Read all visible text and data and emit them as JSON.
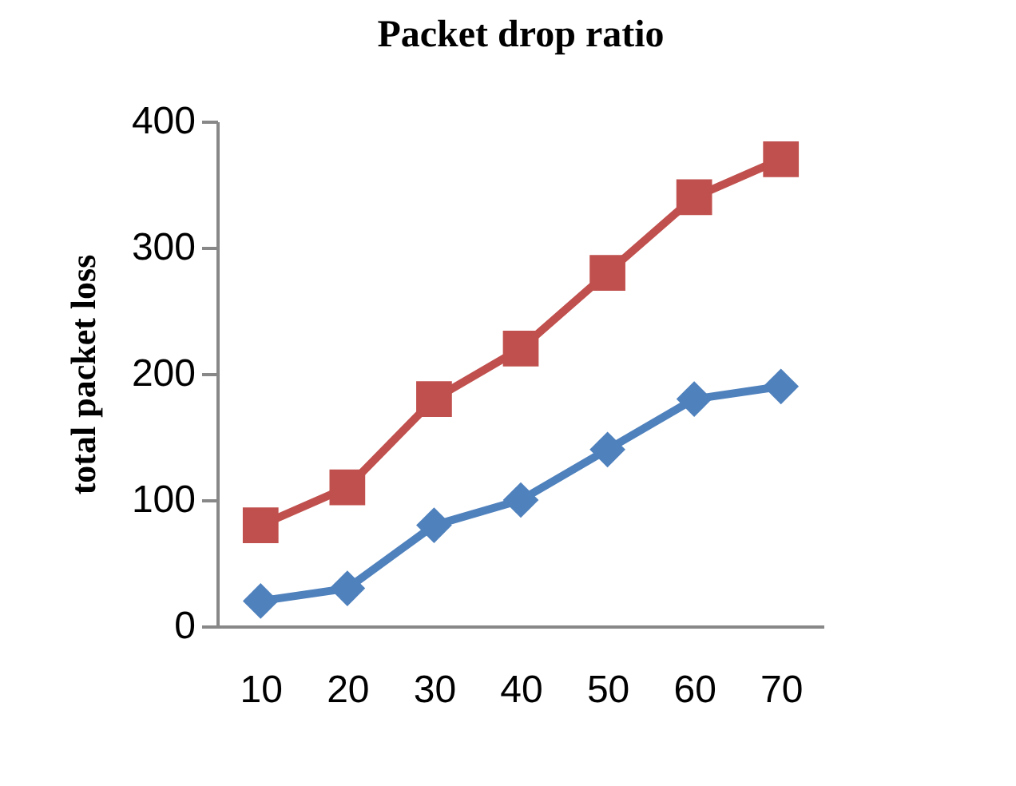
{
  "chart_data": {
    "type": "line",
    "title": "Packet drop ratio",
    "ylabel": "total packet loss",
    "categories": [
      "10",
      "20",
      "30",
      "40",
      "50",
      "60",
      "70"
    ],
    "series": [
      {
        "color": "#c0504d",
        "marker": "square",
        "values": [
          80,
          110,
          180,
          220,
          280,
          340,
          370
        ]
      },
      {
        "color": "#4f81bd",
        "marker": "diamond",
        "values": [
          20,
          30,
          80,
          100,
          140,
          180,
          190
        ]
      }
    ],
    "ylim": [
      0,
      400
    ],
    "yticks": [
      0,
      100,
      200,
      300,
      400
    ],
    "line_style": "solid"
  }
}
